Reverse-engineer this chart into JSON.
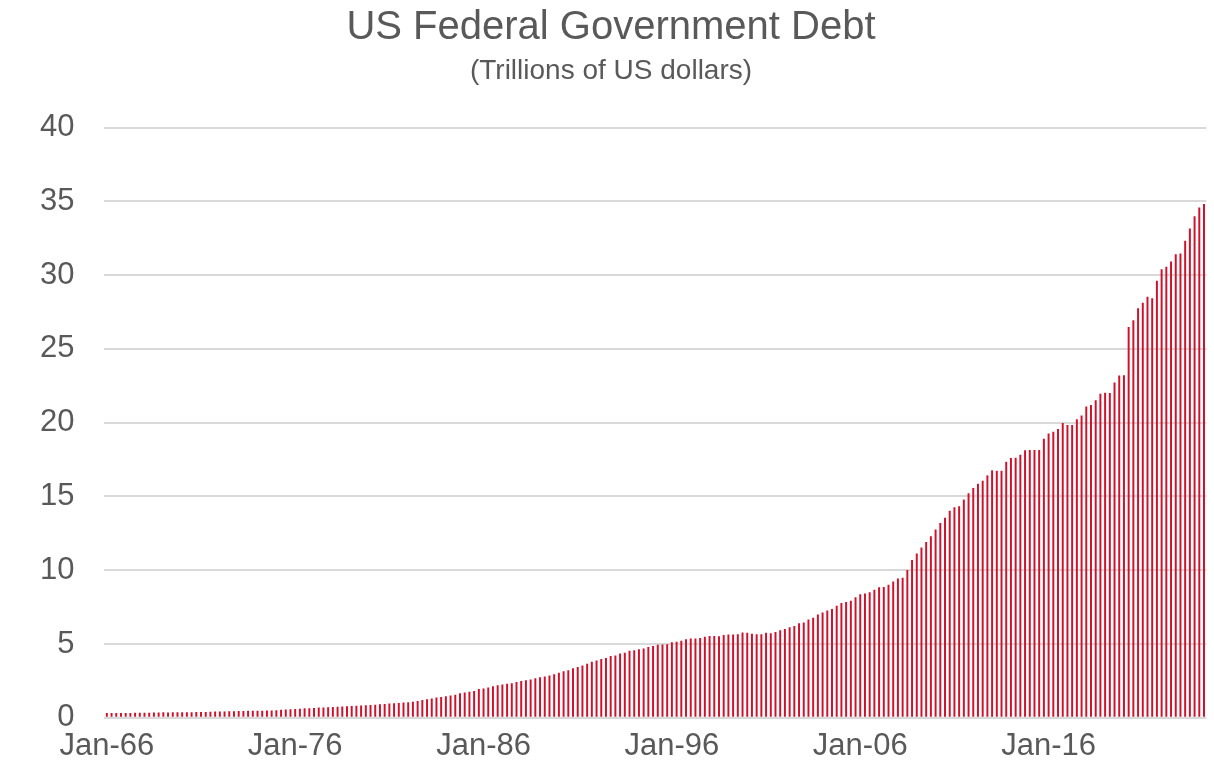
{
  "chart_data": {
    "type": "bar",
    "title": "US Federal Government Debt",
    "subtitle": "(Trillions of US dollars)",
    "categories": [
      "Jan-66",
      null,
      null,
      null,
      null,
      null,
      null,
      null,
      null,
      null,
      null,
      null,
      null,
      null,
      null,
      null,
      null,
      null,
      null,
      null,
      null,
      null,
      null,
      null,
      null,
      null,
      null,
      null,
      null,
      null,
      null,
      null,
      null,
      null,
      null,
      null,
      null,
      null,
      null,
      null,
      "Jan-76",
      null,
      null,
      null,
      null,
      null,
      null,
      null,
      null,
      null,
      null,
      null,
      null,
      null,
      null,
      null,
      null,
      null,
      null,
      null,
      null,
      null,
      null,
      null,
      null,
      null,
      null,
      null,
      null,
      null,
      null,
      null,
      null,
      null,
      null,
      null,
      null,
      null,
      null,
      null,
      "Jan-86",
      null,
      null,
      null,
      null,
      null,
      null,
      null,
      null,
      null,
      null,
      null,
      null,
      null,
      null,
      null,
      null,
      null,
      null,
      null,
      null,
      null,
      null,
      null,
      null,
      null,
      null,
      null,
      null,
      null,
      null,
      null,
      null,
      null,
      null,
      null,
      null,
      null,
      null,
      null,
      "Jan-96",
      null,
      null,
      null,
      null,
      null,
      null,
      null,
      null,
      null,
      null,
      null,
      null,
      null,
      null,
      null,
      null,
      null,
      null,
      null,
      null,
      null,
      null,
      null,
      null,
      null,
      null,
      null,
      null,
      null,
      null,
      null,
      null,
      null,
      null,
      null,
      null,
      null,
      null,
      null,
      "Jan-06",
      null,
      null,
      null,
      null,
      null,
      null,
      null,
      null,
      null,
      null,
      null,
      null,
      null,
      null,
      null,
      null,
      null,
      null,
      null,
      null,
      null,
      null,
      null,
      null,
      null,
      null,
      null,
      null,
      null,
      null,
      null,
      null,
      null,
      null,
      null,
      null,
      null,
      null,
      null,
      "Jan-16",
      null,
      null,
      null,
      null,
      null,
      null,
      null,
      null,
      null,
      null,
      null,
      null,
      null,
      null,
      null,
      null,
      null,
      null,
      null,
      null,
      null,
      null,
      null,
      null,
      null,
      null,
      null,
      null,
      null,
      null,
      null,
      null,
      null
    ],
    "values": [
      0.32,
      0.32,
      0.32,
      0.33,
      0.33,
      0.32,
      0.34,
      0.35,
      0.35,
      0.35,
      0.36,
      0.36,
      0.37,
      0.36,
      0.37,
      0.37,
      0.37,
      0.37,
      0.38,
      0.39,
      0.39,
      0.4,
      0.41,
      0.42,
      0.43,
      0.43,
      0.44,
      0.45,
      0.46,
      0.46,
      0.47,
      0.47,
      0.48,
      0.48,
      0.49,
      0.5,
      0.52,
      0.54,
      0.56,
      0.58,
      0.6,
      0.62,
      0.64,
      0.65,
      0.67,
      0.69,
      0.7,
      0.72,
      0.74,
      0.75,
      0.77,
      0.79,
      0.8,
      0.81,
      0.83,
      0.85,
      0.87,
      0.89,
      0.91,
      0.94,
      0.97,
      0.99,
      1.0,
      1.03,
      1.06,
      1.09,
      1.14,
      1.2,
      1.25,
      1.31,
      1.38,
      1.41,
      1.46,
      1.51,
      1.57,
      1.66,
      1.71,
      1.77,
      1.82,
      1.95,
      1.99,
      2.06,
      2.13,
      2.21,
      2.25,
      2.31,
      2.35,
      2.43,
      2.49,
      2.55,
      2.6,
      2.68,
      2.74,
      2.8,
      2.86,
      2.95,
      3.05,
      3.15,
      3.23,
      3.36,
      3.45,
      3.54,
      3.66,
      3.8,
      3.88,
      3.98,
      4.06,
      4.18,
      4.23,
      4.35,
      4.41,
      4.54,
      4.58,
      4.65,
      4.69,
      4.8,
      4.86,
      4.95,
      4.97,
      4.99,
      5.12,
      5.16,
      5.22,
      5.32,
      5.38,
      5.38,
      5.41,
      5.5,
      5.54,
      5.55,
      5.53,
      5.61,
      5.65,
      5.64,
      5.66,
      5.78,
      5.77,
      5.69,
      5.67,
      5.66,
      5.77,
      5.73,
      5.81,
      5.94,
      6.01,
      6.13,
      6.23,
      6.41,
      6.46,
      6.67,
      6.78,
      7.0,
      7.13,
      7.27,
      7.38,
      7.6,
      7.78,
      7.84,
      7.93,
      8.17,
      8.37,
      8.42,
      8.51,
      8.68,
      8.85,
      8.87,
      9.01,
      9.23,
      9.44,
      9.49,
      10.02,
      10.7,
      11.13,
      11.55,
      11.91,
      12.31,
      12.77,
      13.2,
      13.56,
      14.03,
      14.27,
      14.34,
      14.79,
      15.22,
      15.58,
      15.86,
      16.07,
      16.43,
      16.77,
      16.74,
      16.74,
      17.35,
      17.6,
      17.63,
      17.82,
      18.14,
      18.15,
      18.15,
      18.15,
      18.92,
      19.26,
      19.38,
      19.57,
      19.98,
      19.85,
      19.84,
      20.24,
      20.49,
      21.09,
      21.2,
      21.52,
      21.97,
      22.03,
      22.02,
      22.72,
      23.2,
      23.22,
      26.48,
      26.95,
      27.75,
      28.13,
      28.53,
      28.43,
      29.62,
      30.4,
      30.57,
      30.93,
      31.42,
      31.46,
      32.33,
      33.17,
      34.0,
      34.59,
      34.83
    ],
    "color": "#d0112b",
    "ylim": [
      0,
      40
    ],
    "yticks": [
      0,
      5,
      10,
      15,
      20,
      25,
      30,
      35,
      40
    ],
    "grid": "y",
    "legend": false
  }
}
